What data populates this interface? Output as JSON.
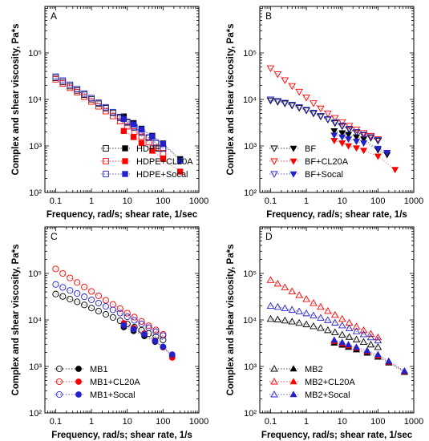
{
  "colors": {
    "black": "#000000",
    "red": "#ff0000",
    "blue": "#2222cc"
  },
  "chart_data": [
    {
      "panel": "A",
      "type": "scatter",
      "xscale": "log",
      "yscale": "log",
      "xlim": [
        0.05,
        1000
      ],
      "ylim": [
        100,
        1000000
      ],
      "xticks": [
        "0.1",
        "1",
        "10",
        "100",
        "1000"
      ],
      "yticks": [
        "10²",
        "10³",
        "10⁴",
        "10⁵"
      ],
      "xlabel": "Frequency, rad/s; shear rate, 1/sec",
      "ylabel": "Complex and shear viscosity, Pa*s",
      "legend_position": "bottom-right",
      "marker": "square",
      "series": [
        {
          "name": "HDPE",
          "color": "#000000",
          "open": {
            "x": [
              0.1,
              0.158,
              0.251,
              0.398,
              0.631,
              1,
              1.58,
              2.51,
              3.98,
              6.31,
              10,
              15.8,
              25.1,
              39.8,
              63.1,
              100
            ],
            "y": [
              29000,
              23700,
              19300,
              15600,
              12600,
              10100,
              8100,
              6500,
              5150,
              4050,
              3200,
              2500,
              1950,
              1500,
              1150,
              880
            ]
          },
          "filled": {
            "x": [
              8,
              15,
              25,
              50,
              100,
              300
            ],
            "y": [
              4300,
              3100,
              2350,
              1650,
              1130,
              520
            ]
          }
        },
        {
          "name": "HDPE+CL20A",
          "color": "#ff0000",
          "open": {
            "x": [
              0.1,
              0.158,
              0.251,
              0.398,
              0.631,
              1,
              1.58,
              2.51,
              3.98,
              6.31,
              10,
              15.8,
              25.1,
              39.8,
              63.1,
              100
            ],
            "y": [
              27000,
              22000,
              17800,
              14300,
              11400,
              9000,
              7100,
              5600,
              4400,
              3400,
              2650,
              2050,
              1580,
              1200,
              920,
              700
            ]
          },
          "filled": {
            "x": [
              8,
              15,
              25,
              50,
              100,
              300
            ],
            "y": [
              2100,
              1550,
              1150,
              790,
              530,
              280
            ]
          }
        },
        {
          "name": "HDPE+Socal",
          "color": "#2222cc",
          "open": {
            "x": [
              0.1,
              0.158,
              0.251,
              0.398,
              0.631,
              1,
              1.58,
              2.51,
              3.98,
              6.31,
              10,
              15.8,
              25.1,
              39.8,
              63.1,
              100
            ],
            "y": [
              31000,
              25500,
              20700,
              16700,
              13400,
              10700,
              8500,
              6800,
              5350,
              4200,
              3300,
              2550,
              1980,
              1520,
              1160,
              880
            ]
          },
          "filled": {
            "x": [
              8,
              15,
              25,
              50,
              100,
              300
            ],
            "y": [
              3800,
              2900,
              2250,
              1600,
              1100,
              480
            ]
          }
        }
      ]
    },
    {
      "panel": "B",
      "type": "scatter",
      "xscale": "log",
      "yscale": "log",
      "xlim": [
        0.05,
        1000
      ],
      "ylim": [
        100,
        1000000
      ],
      "xticks": [
        "0.1",
        "1",
        "10",
        "100",
        "1000"
      ],
      "yticks": [
        "10²",
        "10³",
        "10⁴",
        "10⁵"
      ],
      "xlabel": "Frequency, rad/s; shear rate, 1/s",
      "ylabel": "Complex and shear viscosity, Pa*s",
      "legend_position": "bottom-left",
      "marker": "triangle-down",
      "series": [
        {
          "name": "BF",
          "color": "#000000",
          "open": {
            "x": [
              0.1,
              0.158,
              0.251,
              0.398,
              0.631,
              1,
              1.58,
              2.51,
              3.98,
              6.31,
              10,
              15.8,
              25.1,
              39.8,
              63.1,
              100
            ],
            "y": [
              9500,
              8900,
              8200,
              7400,
              6600,
              5800,
              5000,
              4300,
              3700,
              3100,
              2650,
              2250,
              1950,
              1700,
              1500,
              1300
            ]
          },
          "filled": {
            "x": [
              6,
              10,
              15,
              25,
              40,
              100,
              180
            ],
            "y": [
              2100,
              1900,
              1750,
              1550,
              1400,
              820,
              650
            ]
          }
        },
        {
          "name": "BF+CL20A",
          "color": "#ff0000",
          "open": {
            "x": [
              0.1,
              0.158,
              0.251,
              0.398,
              0.631,
              1,
              1.58,
              2.51,
              3.98,
              6.31,
              10,
              15.8,
              25.1,
              39.8,
              63.1,
              100
            ],
            "y": [
              47000,
              35000,
              26000,
              19500,
              14700,
              11000,
              8300,
              6400,
              5000,
              4000,
              3250,
              2700,
              2250,
              1900,
              1650,
              1400
            ]
          },
          "filled": {
            "x": [
              6,
              10,
              15,
              25,
              40,
              100,
              300
            ],
            "y": [
              1300,
              1150,
              1000,
              900,
              800,
              600,
              310
            ]
          }
        },
        {
          "name": "BF+Socal",
          "color": "#2222cc",
          "open": {
            "x": [
              0.1,
              0.158,
              0.251,
              0.398,
              0.631,
              1,
              1.58,
              2.51,
              3.98,
              6.31,
              10,
              15.8,
              25.1,
              39.8,
              63.1,
              100
            ],
            "y": [
              10000,
              9300,
              8500,
              7700,
              6850,
              6000,
              5200,
              4450,
              3800,
              3250,
              2750,
              2350,
              2000,
              1750,
              1550,
              1350
            ]
          },
          "filled": {
            "x": [
              6,
              10,
              15,
              25,
              40,
              100,
              180
            ],
            "y": [
              1700,
              1550,
              1400,
              1250,
              1150,
              880,
              720
            ]
          }
        }
      ]
    },
    {
      "panel": "C",
      "type": "scatter",
      "xscale": "log",
      "yscale": "log",
      "xlim": [
        0.05,
        1000
      ],
      "ylim": [
        100,
        1000000
      ],
      "xticks": [
        "0.1",
        "1",
        "10",
        "100",
        "1000"
      ],
      "yticks": [
        "10²",
        "10³",
        "10⁴",
        "10⁵"
      ],
      "xlabel": "Frequency, rad/s; shear rate, 1/s",
      "ylabel": "Complex and shear viscosity, Pa*s",
      "legend_position": "bottom-left",
      "marker": "circle",
      "series": [
        {
          "name": "MB1",
          "color": "#000000",
          "open": {
            "x": [
              0.1,
              0.158,
              0.251,
              0.398,
              0.631,
              1,
              1.58,
              2.51,
              3.98,
              6.31,
              10,
              15.8,
              25.1,
              39.8,
              63.1,
              100
            ],
            "y": [
              36000,
              32000,
              28000,
              24500,
              21000,
              18000,
              15500,
              13200,
              11300,
              9600,
              8200,
              7000,
              6000,
              5100,
              4350,
              3700
            ]
          },
          "filled": {
            "x": [
              8,
              15,
              30,
              60,
              100,
              180
            ],
            "y": [
              7000,
              5800,
              4500,
              3400,
              2600,
              1700
            ]
          }
        },
        {
          "name": "MB1+CL20A",
          "color": "#ff0000",
          "open": {
            "x": [
              0.1,
              0.158,
              0.251,
              0.398,
              0.631,
              1,
              1.58,
              2.51,
              3.98,
              6.31,
              10,
              15.8,
              25.1,
              39.8,
              63.1,
              100
            ],
            "y": [
              125000,
              100000,
              80000,
              64000,
              51000,
              41000,
              33000,
              26500,
              21500,
              17500,
              14000,
              11500,
              9300,
              7500,
              6100,
              4900
            ]
          },
          "filled": {
            "x": [
              8,
              15,
              30,
              60,
              100,
              180
            ],
            "y": [
              8500,
              6700,
              5100,
              3600,
              2600,
              1550
            ]
          }
        },
        {
          "name": "MB1+Socal",
          "color": "#2222cc",
          "open": {
            "x": [
              0.1,
              0.158,
              0.251,
              0.398,
              0.631,
              1,
              1.58,
              2.51,
              3.98,
              6.31,
              10,
              15.8,
              25.1,
              39.8,
              63.1,
              100
            ],
            "y": [
              58000,
              50000,
              43000,
              37000,
              31500,
              27000,
              23000,
              19500,
              16500,
              14000,
              11700,
              9800,
              8200,
              6800,
              5600,
              4600
            ]
          },
          "filled": {
            "x": [
              8,
              15,
              30,
              60,
              100,
              180
            ],
            "y": [
              7700,
              6300,
              4900,
              3550,
              2650,
              1800
            ]
          }
        }
      ]
    },
    {
      "panel": "D",
      "type": "scatter",
      "xscale": "log",
      "yscale": "log",
      "xlim": [
        0.05,
        1000
      ],
      "ylim": [
        100,
        1000000
      ],
      "xticks": [
        "0.1",
        "1",
        "10",
        "100",
        "1000"
      ],
      "yticks": [
        "10²",
        "10³",
        "10⁴",
        "10⁵"
      ],
      "xlabel": "Frequency, rad/s; shear rate, 1/sec",
      "ylabel": "Complex and shear viscosity, Pa*s",
      "legend_position": "bottom-left",
      "marker": "triangle-up",
      "series": [
        {
          "name": "MB2",
          "color": "#000000",
          "open": {
            "x": [
              0.1,
              0.158,
              0.251,
              0.398,
              0.631,
              1,
              1.58,
              2.51,
              3.98,
              6.31,
              10,
              15.8,
              25.1,
              39.8,
              63.1,
              100
            ],
            "y": [
              10500,
              10200,
              9700,
              9200,
              8600,
              8000,
              7300,
              6700,
              6000,
              5400,
              4800,
              4300,
              3800,
              3350,
              2950,
              2600
            ]
          },
          "filled": {
            "x": [
              6,
              10,
              15,
              25,
              50,
              100,
              200,
              550
            ],
            "y": [
              3200,
              2900,
              2600,
              2300,
              1950,
              1600,
              1200,
              750
            ]
          }
        },
        {
          "name": "MB2+CL20A",
          "color": "#ff0000",
          "open": {
            "x": [
              0.1,
              0.158,
              0.251,
              0.398,
              0.631,
              1,
              1.58,
              2.51,
              3.98,
              6.31,
              10,
              15.8,
              25.1,
              39.8,
              63.1,
              100
            ],
            "y": [
              72000,
              60000,
              50000,
              41000,
              34000,
              28000,
              23000,
              19000,
              15500,
              12800,
              10500,
              8700,
              7200,
              6000,
              5000,
              4200
            ]
          },
          "filled": {
            "x": [
              6,
              10,
              15,
              25,
              50,
              100,
              200,
              550
            ],
            "y": [
              3500,
              3100,
              2800,
              2500,
              2100,
              1700,
              1250,
              780
            ]
          }
        },
        {
          "name": "MB2+Socal",
          "color": "#2222cc",
          "open": {
            "x": [
              0.1,
              0.158,
              0.251,
              0.398,
              0.631,
              1,
              1.58,
              2.51,
              3.98,
              6.31,
              10,
              15.8,
              25.1,
              39.8,
              63.1,
              100
            ],
            "y": [
              20000,
              19000,
              17800,
              16500,
              15200,
              13800,
              12400,
              11100,
              9900,
              8700,
              7600,
              6600,
              5700,
              4900,
              4200,
              3600
            ]
          },
          "filled": {
            "x": [
              6,
              10,
              15,
              25,
              50,
              100,
              200,
              550
            ],
            "y": [
              3700,
              3300,
              2950,
              2600,
              2200,
              1800,
              1300,
              800
            ]
          }
        }
      ]
    }
  ]
}
